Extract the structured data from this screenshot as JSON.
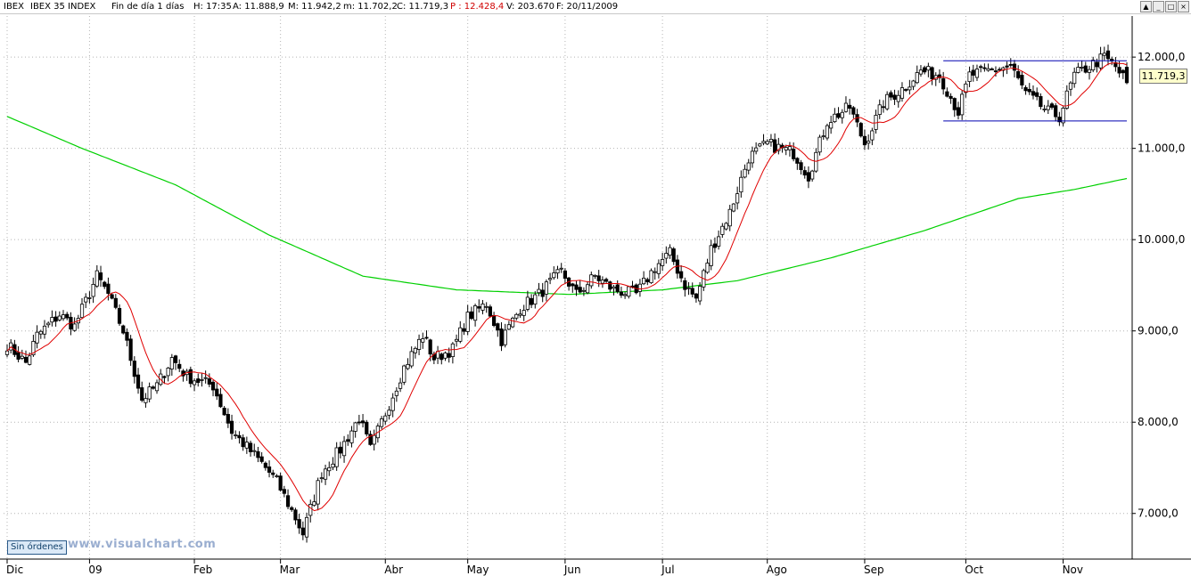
{
  "header": {
    "symbol": "IBEX",
    "name": "IBEX 35 INDEX",
    "timeframe": "Fin de día 1 días",
    "hora": "H: 17:35",
    "apertura": "A: 11.888,9",
    "maximo": "M: 11.942,2",
    "minimo": "m: 11.702,2",
    "cierre": "C: 11.719,3",
    "precio": "P : 12.428,4",
    "volumen": "V: 203.670",
    "fecha": "F: 20/11/2009"
  },
  "window_buttons": [
    "▲",
    "_",
    "□",
    "×"
  ],
  "last_price_label": "11.719,3",
  "orders_button": "Sin órdenes",
  "watermark": "www.visualchart.com",
  "colors": {
    "ma_short": "#e00000",
    "ma_long": "#00d000",
    "channel": "#0000b0",
    "grid": "#b4b4b4",
    "candle": "#000000"
  },
  "chart_data": {
    "type": "candlestick",
    "title": "IBEX 35 INDEX",
    "timeframe": "Fin de día 1 días",
    "y_range": [
      6500,
      12450
    ],
    "y_ticks": [
      7000,
      8000,
      9000,
      10000,
      11000,
      12000
    ],
    "y_tick_labels": [
      "7.000,0",
      "8.000,0",
      "9.000,0",
      "10.000,0",
      "11.000,0",
      "12.000,0"
    ],
    "x_labels": [
      "Dic",
      "09",
      "Feb",
      "Mar",
      "Abr",
      "May",
      "Jun",
      "Jul",
      "Ago",
      "Sep",
      "Oct",
      "Nov"
    ],
    "x_label_bar_index": [
      0,
      22,
      50,
      73,
      101,
      123,
      149,
      175,
      203,
      229,
      256,
      282
    ],
    "num_bars": 300,
    "close_anchors": [
      [
        0,
        8850
      ],
      [
        5,
        8650
      ],
      [
        8,
        8950
      ],
      [
        14,
        9180
      ],
      [
        18,
        9050
      ],
      [
        24,
        9600
      ],
      [
        27,
        9400
      ],
      [
        31,
        9000
      ],
      [
        36,
        8250
      ],
      [
        40,
        8400
      ],
      [
        44,
        8700
      ],
      [
        48,
        8500
      ],
      [
        55,
        8400
      ],
      [
        60,
        7900
      ],
      [
        68,
        7550
      ],
      [
        72,
        7350
      ],
      [
        77,
        6950
      ],
      [
        79,
        6780
      ],
      [
        84,
        7450
      ],
      [
        89,
        7700
      ],
      [
        94,
        8050
      ],
      [
        97,
        7700
      ],
      [
        101,
        8100
      ],
      [
        106,
        8600
      ],
      [
        111,
        8950
      ],
      [
        114,
        8700
      ],
      [
        119,
        8800
      ],
      [
        123,
        9150
      ],
      [
        128,
        9300
      ],
      [
        132,
        8900
      ],
      [
        137,
        9250
      ],
      [
        142,
        9400
      ],
      [
        148,
        9650
      ],
      [
        152,
        9400
      ],
      [
        157,
        9600
      ],
      [
        162,
        9450
      ],
      [
        168,
        9400
      ],
      [
        173,
        9700
      ],
      [
        177,
        9850
      ],
      [
        181,
        9500
      ],
      [
        184,
        9350
      ],
      [
        188,
        9900
      ],
      [
        193,
        10300
      ],
      [
        198,
        10900
      ],
      [
        203,
        11050
      ],
      [
        210,
        10950
      ],
      [
        214,
        10700
      ],
      [
        219,
        11300
      ],
      [
        225,
        11450
      ],
      [
        229,
        11050
      ],
      [
        234,
        11500
      ],
      [
        239,
        11650
      ],
      [
        244,
        11850
      ],
      [
        249,
        11800
      ],
      [
        254,
        11400
      ],
      [
        257,
        11800
      ],
      [
        262,
        11850
      ],
      [
        268,
        11900
      ],
      [
        272,
        11600
      ],
      [
        278,
        11400
      ],
      [
        281,
        11350
      ],
      [
        285,
        11800
      ],
      [
        289,
        11900
      ],
      [
        293,
        12000
      ],
      [
        296,
        11890
      ],
      [
        299,
        11719
      ]
    ],
    "ma_long_anchors": [
      [
        0,
        11350
      ],
      [
        20,
        11000
      ],
      [
        45,
        10600
      ],
      [
        70,
        10050
      ],
      [
        95,
        9600
      ],
      [
        120,
        9450
      ],
      [
        150,
        9400
      ],
      [
        175,
        9450
      ],
      [
        195,
        9550
      ],
      [
        220,
        9800
      ],
      [
        245,
        10100
      ],
      [
        270,
        10450
      ],
      [
        285,
        10550
      ],
      [
        299,
        10670
      ]
    ],
    "ma_short_period": 10,
    "channel": {
      "upper": {
        "from_bar": 250,
        "to_bar": 299,
        "value": 11960
      },
      "lower": {
        "from_bar": 250,
        "to_bar": 299,
        "value": 11300
      }
    },
    "last_close": 11719.3
  }
}
